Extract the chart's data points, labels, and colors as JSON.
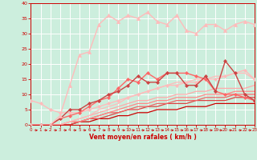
{
  "xlabel": "Vent moyen/en rafales ( km/h )",
  "xlim": [
    0,
    23
  ],
  "ylim": [
    0,
    40
  ],
  "xticks": [
    0,
    1,
    2,
    3,
    4,
    5,
    6,
    7,
    8,
    9,
    10,
    11,
    12,
    13,
    14,
    15,
    16,
    17,
    18,
    19,
    20,
    21,
    22,
    23
  ],
  "yticks": [
    0,
    5,
    10,
    15,
    20,
    25,
    30,
    35,
    40
  ],
  "background_color": "#cceedd",
  "grid_color": "#ffffff",
  "lines": [
    {
      "x": [
        0,
        1,
        2,
        3,
        4,
        5,
        6,
        7,
        8,
        9,
        10,
        11,
        12,
        13,
        14,
        15,
        16,
        17,
        18,
        19,
        20,
        21,
        22,
        23
      ],
      "y": [
        0,
        0,
        0,
        0,
        0,
        1,
        1,
        2,
        2,
        3,
        3,
        4,
        4,
        5,
        5,
        5,
        6,
        6,
        6,
        7,
        7,
        7,
        7,
        7
      ],
      "color": "#cc0000",
      "linewidth": 0.9,
      "marker": null,
      "linestyle": "-"
    },
    {
      "x": [
        0,
        1,
        2,
        3,
        4,
        5,
        6,
        7,
        8,
        9,
        10,
        11,
        12,
        13,
        14,
        15,
        16,
        17,
        18,
        19,
        20,
        21,
        22,
        23
      ],
      "y": [
        0,
        0,
        0,
        0,
        0,
        1,
        2,
        2,
        3,
        4,
        5,
        5,
        6,
        6,
        7,
        7,
        7,
        8,
        8,
        8,
        8,
        9,
        9,
        9
      ],
      "color": "#dd4444",
      "linewidth": 0.9,
      "marker": null,
      "linestyle": "-"
    },
    {
      "x": [
        0,
        1,
        2,
        3,
        4,
        5,
        6,
        7,
        8,
        9,
        10,
        11,
        12,
        13,
        14,
        15,
        16,
        17,
        18,
        19,
        20,
        21,
        22,
        23
      ],
      "y": [
        0,
        0,
        0,
        0,
        1,
        1,
        2,
        3,
        4,
        4,
        5,
        6,
        6,
        7,
        7,
        8,
        8,
        8,
        9,
        9,
        9,
        10,
        10,
        10
      ],
      "color": "#ee6666",
      "linewidth": 0.9,
      "marker": null,
      "linestyle": "-"
    },
    {
      "x": [
        0,
        1,
        2,
        3,
        4,
        5,
        6,
        7,
        8,
        9,
        10,
        11,
        12,
        13,
        14,
        15,
        16,
        17,
        18,
        19,
        20,
        21,
        22,
        23
      ],
      "y": [
        0,
        0,
        0,
        0,
        1,
        1,
        2,
        3,
        4,
        5,
        6,
        7,
        7,
        8,
        8,
        9,
        9,
        9,
        10,
        10,
        10,
        11,
        11,
        11
      ],
      "color": "#ff8888",
      "linewidth": 0.9,
      "marker": null,
      "linestyle": "-"
    },
    {
      "x": [
        0,
        1,
        2,
        3,
        4,
        5,
        6,
        7,
        8,
        9,
        10,
        11,
        12,
        13,
        14,
        15,
        16,
        17,
        18,
        19,
        20,
        21,
        22,
        23
      ],
      "y": [
        0,
        0,
        0,
        0,
        1,
        2,
        3,
        4,
        5,
        6,
        7,
        8,
        8,
        9,
        9,
        10,
        10,
        11,
        11,
        12,
        12,
        12,
        12,
        13
      ],
      "color": "#ffaaaa",
      "linewidth": 0.9,
      "marker": null,
      "linestyle": "-"
    },
    {
      "x": [
        0,
        1,
        2,
        3,
        4,
        5,
        6,
        7,
        8,
        9,
        10,
        11,
        12,
        13,
        14,
        15,
        16,
        17,
        18,
        19,
        20,
        21,
        22,
        23
      ],
      "y": [
        0,
        0,
        0,
        0,
        1,
        2,
        3,
        5,
        6,
        7,
        9,
        10,
        11,
        12,
        13,
        14,
        14,
        15,
        15,
        16,
        16,
        17,
        17,
        15
      ],
      "color": "#ffbbbb",
      "linewidth": 0.9,
      "marker": null,
      "linestyle": "-"
    },
    {
      "x": [
        0,
        1,
        2,
        3,
        4,
        5,
        6,
        7,
        8,
        9,
        10,
        11,
        12,
        13,
        14,
        15,
        16,
        17,
        18,
        19,
        20,
        21,
        22,
        23
      ],
      "y": [
        8,
        7,
        5,
        4,
        4,
        4,
        5,
        6,
        7,
        8,
        9,
        10,
        11,
        12,
        13,
        13,
        14,
        14,
        15,
        15,
        16,
        17,
        18,
        15
      ],
      "color": "#ffbbbb",
      "linewidth": 1.0,
      "marker": "D",
      "markersize": 2,
      "linestyle": "-"
    },
    {
      "x": [
        0,
        1,
        2,
        3,
        4,
        5,
        6,
        7,
        8,
        9,
        10,
        11,
        12,
        13,
        14,
        15,
        16,
        17,
        18,
        19,
        20,
        21,
        22,
        23
      ],
      "y": [
        0,
        0,
        0,
        2,
        3,
        4,
        6,
        8,
        9,
        12,
        15,
        14,
        17,
        15,
        17,
        17,
        17,
        16,
        15,
        11,
        10,
        10,
        9,
        8
      ],
      "color": "#ff6666",
      "linewidth": 1.0,
      "marker": "D",
      "markersize": 2,
      "linestyle": "-"
    },
    {
      "x": [
        0,
        1,
        2,
        3,
        4,
        5,
        6,
        7,
        8,
        9,
        10,
        11,
        12,
        13,
        14,
        15,
        16,
        17,
        18,
        19,
        20,
        21,
        22,
        23
      ],
      "y": [
        0,
        0,
        0,
        2,
        5,
        5,
        7,
        8,
        10,
        11,
        13,
        16,
        14,
        14,
        17,
        17,
        13,
        13,
        16,
        11,
        21,
        17,
        10,
        8
      ],
      "color": "#cc4444",
      "linewidth": 1.0,
      "marker": "D",
      "markersize": 2,
      "linestyle": "-"
    },
    {
      "x": [
        0,
        1,
        2,
        3,
        4,
        5,
        6,
        7,
        8,
        9,
        10,
        11,
        12,
        13,
        14,
        15,
        16,
        17,
        18,
        19,
        20,
        21,
        22,
        23
      ],
      "y": [
        0,
        0,
        0,
        3,
        13,
        23,
        24,
        33,
        36,
        34,
        36,
        35,
        37,
        34,
        33,
        36,
        31,
        30,
        33,
        33,
        31,
        33,
        34,
        33
      ],
      "color": "#ffbbbb",
      "linewidth": 1.0,
      "marker": "^",
      "markersize": 3,
      "linestyle": "-"
    }
  ]
}
